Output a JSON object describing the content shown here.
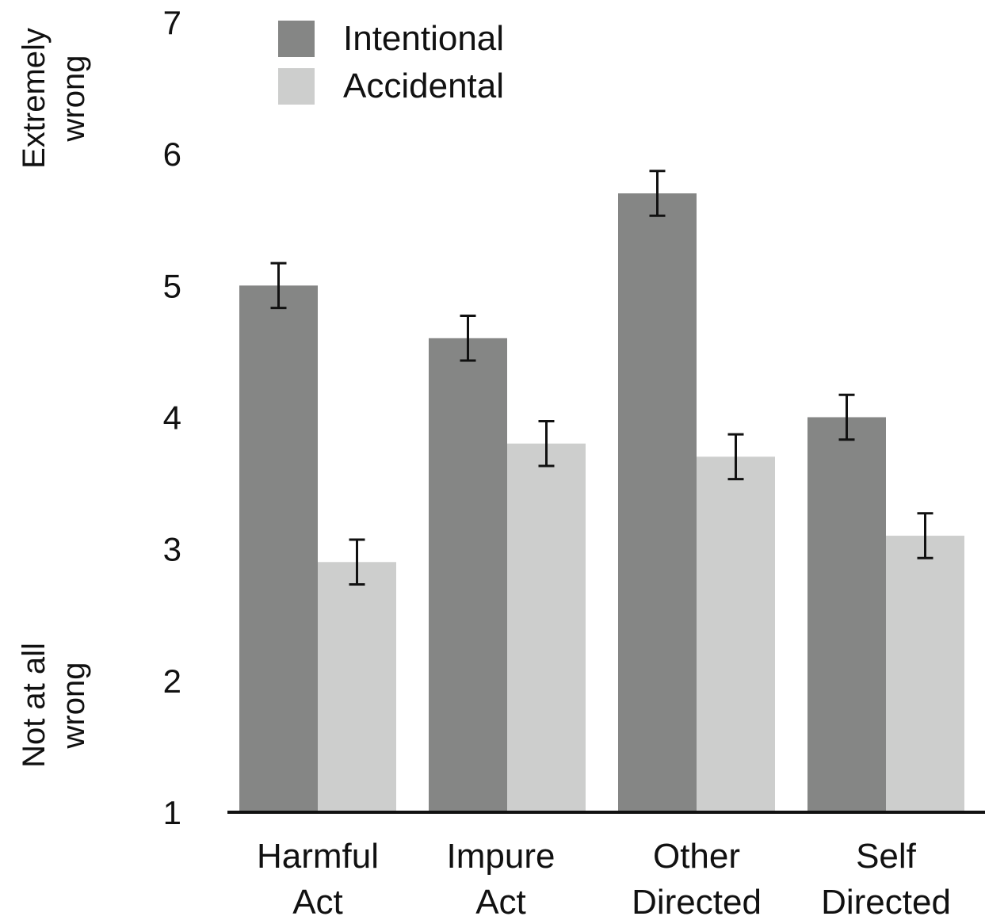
{
  "chart_data": {
    "type": "bar",
    "title": "",
    "xlabel": "",
    "ylabel": "",
    "ylim": [
      1,
      7
    ],
    "yticks": [
      1,
      2,
      3,
      4,
      5,
      6,
      7
    ],
    "y_anchor_labels": {
      "top": [
        "Extremely",
        "wrong"
      ],
      "bottom": [
        "Not at all",
        "wrong"
      ]
    },
    "categories": [
      [
        "Harmful",
        "Act"
      ],
      [
        "Impure",
        "Act"
      ],
      [
        "Other",
        "Directed"
      ],
      [
        "Self",
        "Directed"
      ]
    ],
    "series": [
      {
        "name": "Intentional",
        "color": "#858685",
        "values": [
          5.0,
          4.6,
          5.7,
          4.0
        ],
        "error": [
          0.17,
          0.17,
          0.17,
          0.17
        ]
      },
      {
        "name": "Accidental",
        "color": "#cdcecd",
        "values": [
          2.9,
          3.8,
          3.7,
          3.1
        ],
        "error": [
          0.17,
          0.17,
          0.17,
          0.17
        ]
      }
    ],
    "grid": false,
    "legend_position": "top-left",
    "error_bars": true
  }
}
